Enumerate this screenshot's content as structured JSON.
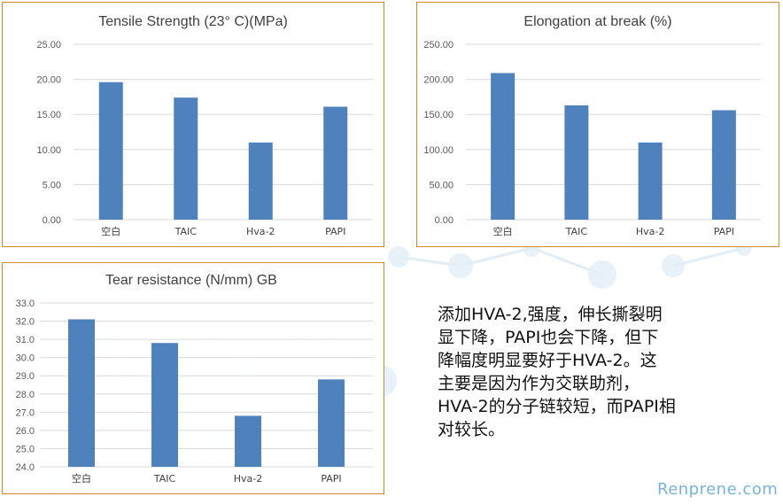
{
  "chart_data": [
    {
      "type": "bar",
      "title": "Tensile Strength (23° C)(MPa)",
      "categories": [
        "空白",
        "TAIC",
        "Hva-2",
        "PAPI"
      ],
      "values": [
        19.6,
        17.4,
        11.0,
        16.1
      ],
      "ylim": [
        0,
        25
      ],
      "yticks": [
        "0.00",
        "5.00",
        "10.00",
        "15.00",
        "20.00",
        "25.00"
      ],
      "grid": true
    },
    {
      "type": "bar",
      "title": "Elongation at break (%)",
      "categories": [
        "空白",
        "TAIC",
        "Hva-2",
        "PAPI"
      ],
      "values": [
        209,
        163,
        110,
        156
      ],
      "ylim": [
        0,
        250
      ],
      "yticks": [
        "0.00",
        "50.00",
        "100.00",
        "150.00",
        "200.00",
        "250.00"
      ],
      "grid": true
    },
    {
      "type": "bar",
      "title": "Tear resistance (N/mm) GB",
      "categories": [
        "空白",
        "TAIC",
        "Hva-2",
        "PAPI"
      ],
      "values": [
        32.1,
        30.8,
        26.8,
        28.8
      ],
      "ylim": [
        24,
        33
      ],
      "yticks": [
        "24.0",
        "25.0",
        "26.0",
        "27.0",
        "28.0",
        "29.0",
        "30.0",
        "31.0",
        "32.0",
        "33.0"
      ],
      "grid": true
    }
  ],
  "colors": {
    "bar": "#4f81bd",
    "border": "#d08a2a",
    "grid": "#d9d9d9"
  },
  "note_lines": [
    "添加HVA-2,强度，伸长撕裂明",
    "显下降，PAPI也会下降，但下",
    "降幅度明显要好于HVA-2。这",
    "主要是因为作为交联助剂，",
    "HVA-2的分子链较短，而PAPI相",
    "对较长。"
  ],
  "watermark": "Renprene.com"
}
